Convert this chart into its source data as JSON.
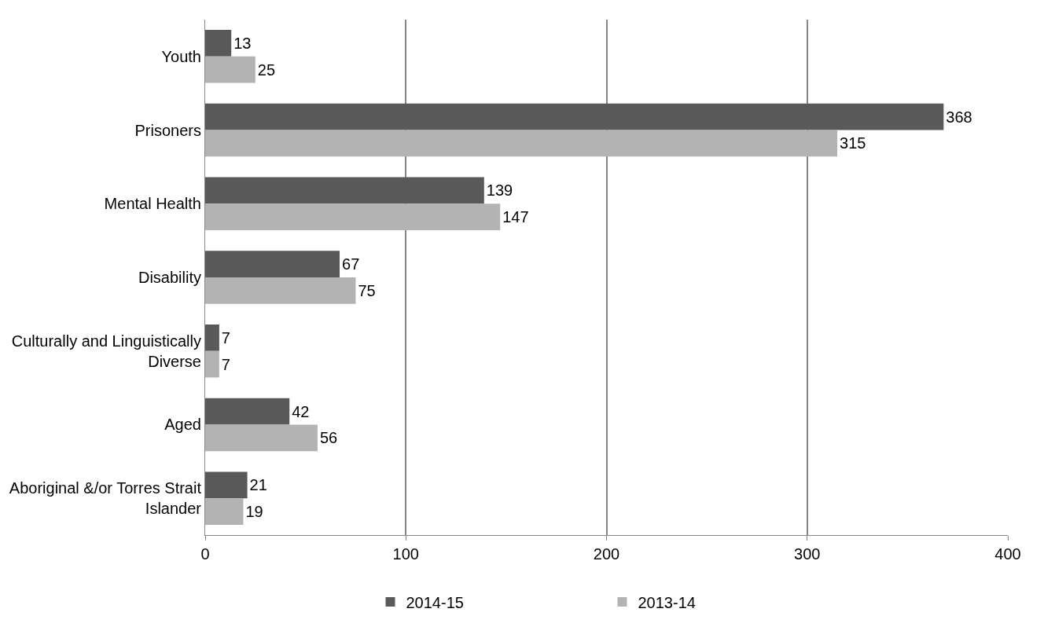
{
  "chart_data": {
    "type": "bar",
    "orientation": "horizontal",
    "categories": [
      "Youth",
      "Prisoners",
      "Mental Health",
      "Disability",
      "Culturally and Linguistically Diverse",
      "Aged",
      "Aboriginal &/or Torres Strait Islander"
    ],
    "series": [
      {
        "name": "2014-15",
        "color": "#595959",
        "values": [
          13,
          368,
          139,
          67,
          7,
          42,
          21
        ]
      },
      {
        "name": "2013-14",
        "color": "#b3b3b3",
        "values": [
          25,
          315,
          147,
          75,
          7,
          56,
          19
        ]
      }
    ],
    "xlim": [
      0,
      400
    ],
    "xticks": [
      0,
      100,
      200,
      300,
      400
    ],
    "grid": "x",
    "legend": "bottom",
    "data_labels": true
  }
}
